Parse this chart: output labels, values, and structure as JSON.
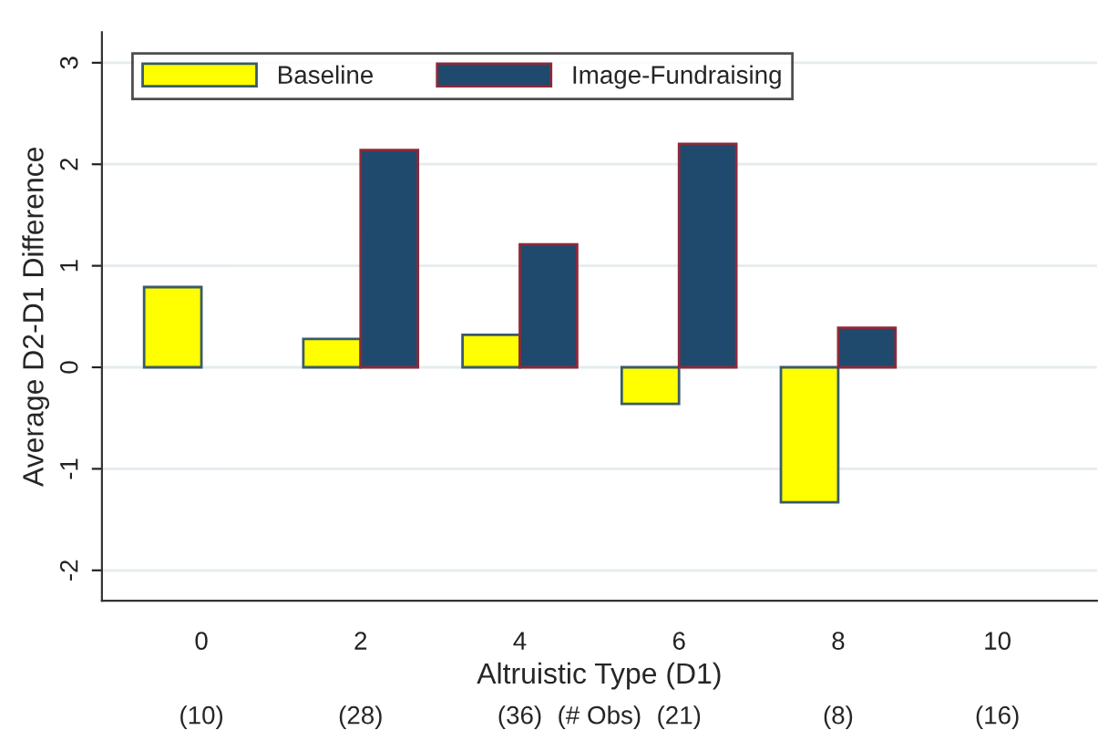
{
  "chart_data": {
    "type": "bar",
    "x": [
      0,
      2,
      4,
      6,
      8
    ],
    "series": [
      {
        "name": "Baseline",
        "color": "#ffff00",
        "values": [
          0.79,
          0.28,
          0.32,
          -0.36,
          -1.33
        ]
      },
      {
        "name": "Image-Fundraising",
        "color": "#1f4a6e",
        "values": [
          null,
          2.14,
          1.21,
          2.2,
          0.39
        ]
      }
    ],
    "xlabel": "Altruistic Type (D1)",
    "ylabel": "Average D2-D1 Difference",
    "xlim": [
      -1.25,
      11.25
    ],
    "xticks": [
      0,
      2,
      4,
      6,
      8,
      10
    ],
    "annotations": [
      "(10)",
      "(28)",
      "(36)",
      "(# Obs)",
      "(21)",
      "(8)",
      "(16)"
    ],
    "ylim": [
      -2.3,
      3.3
    ],
    "yticks": [
      -2,
      -1,
      0,
      1,
      2,
      3
    ],
    "grid": "y",
    "legend": "top left"
  }
}
